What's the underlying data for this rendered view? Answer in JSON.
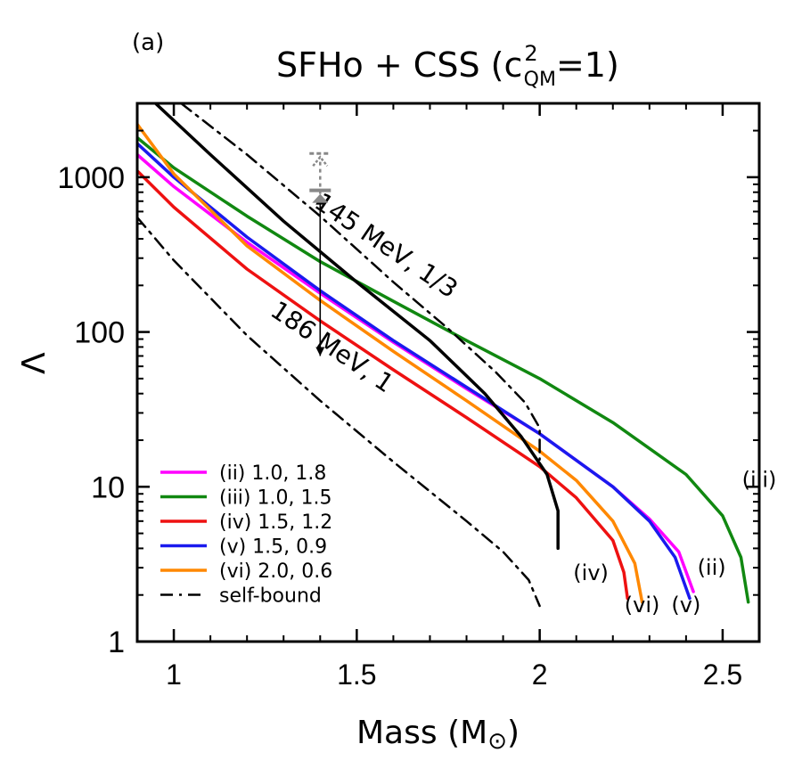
{
  "panel_label": "(a)",
  "title_main": "SFHo + CSS (c",
  "title_sup": "2",
  "title_sub": "QM",
  "title_end": "=1)",
  "xlabel_main": "Mass (M",
  "xlabel_sun": "⊙",
  "xlabel_end": ")",
  "ylabel": "Λ",
  "annotations": {
    "upper_selfbound": "145 MeV, 1/3",
    "lower_selfbound": "186 MeV, 1"
  },
  "colors": {
    "ii": "#ff00ff",
    "iii": "#118811",
    "iv": "#ee1111",
    "v": "#1a1aee",
    "vi": "#ff8800",
    "sfho": "#000000",
    "selfbound": "#000000",
    "gray": "#888888"
  },
  "chart_data": {
    "type": "line",
    "xlim": [
      0.9,
      2.6
    ],
    "ylim": [
      1,
      3000
    ],
    "yscale": "log",
    "xticks": [
      1,
      1.5,
      2,
      2.5
    ],
    "xtick_labels": [
      "1",
      "1.5",
      "2",
      "2.5"
    ],
    "yticks": [
      1,
      10,
      100,
      1000
    ],
    "ytick_labels": [
      "1",
      "10",
      "100",
      "1000"
    ],
    "legend_position": "lower-left",
    "series": [
      {
        "key": "ii",
        "name": "(ii) 1.0, 1.8",
        "label": "(ii)",
        "style": "solid",
        "points": [
          [
            0.9,
            1400
          ],
          [
            1.0,
            870
          ],
          [
            1.2,
            380
          ],
          [
            1.4,
            178
          ],
          [
            1.6,
            86
          ],
          [
            1.8,
            43
          ],
          [
            2.0,
            22
          ],
          [
            2.2,
            10
          ],
          [
            2.3,
            6.2
          ],
          [
            2.38,
            3.8
          ],
          [
            2.42,
            2.1
          ]
        ]
      },
      {
        "key": "iii",
        "name": "(iii) 1.0, 1.5",
        "label": "(iii)",
        "style": "solid",
        "points": [
          [
            0.9,
            1800
          ],
          [
            1.0,
            1150
          ],
          [
            1.2,
            560
          ],
          [
            1.4,
            285
          ],
          [
            1.6,
            158
          ],
          [
            1.8,
            88
          ],
          [
            2.0,
            50
          ],
          [
            2.2,
            26
          ],
          [
            2.4,
            12
          ],
          [
            2.5,
            6.5
          ],
          [
            2.55,
            3.5
          ],
          [
            2.57,
            1.8
          ]
        ]
      },
      {
        "key": "iv",
        "name": "(iv) 1.5, 1.2",
        "label": "(iv)",
        "style": "solid",
        "points": [
          [
            0.9,
            1100
          ],
          [
            1.0,
            640
          ],
          [
            1.2,
            255
          ],
          [
            1.4,
            118
          ],
          [
            1.6,
            57
          ],
          [
            1.8,
            28
          ],
          [
            2.0,
            13.5
          ],
          [
            2.1,
            8.5
          ],
          [
            2.2,
            4.5
          ],
          [
            2.23,
            2.8
          ],
          [
            2.24,
            1.9
          ]
        ]
      },
      {
        "key": "v",
        "name": "(v) 1.5, 0.9",
        "label": "(v)",
        "style": "solid",
        "points": [
          [
            0.9,
            1650
          ],
          [
            1.0,
            1000
          ],
          [
            1.2,
            410
          ],
          [
            1.4,
            185
          ],
          [
            1.6,
            88
          ],
          [
            1.8,
            44
          ],
          [
            2.0,
            22
          ],
          [
            2.2,
            10
          ],
          [
            2.3,
            6
          ],
          [
            2.37,
            3.5
          ],
          [
            2.41,
            1.9
          ]
        ]
      },
      {
        "key": "vi",
        "name": "(vi) 2.0, 0.6",
        "label": "(vi)",
        "style": "solid",
        "points": [
          [
            0.9,
            2200
          ],
          [
            1.0,
            1050
          ],
          [
            1.2,
            360
          ],
          [
            1.4,
            160
          ],
          [
            1.6,
            75
          ],
          [
            1.8,
            36
          ],
          [
            2.0,
            17
          ],
          [
            2.1,
            11
          ],
          [
            2.2,
            6
          ],
          [
            2.26,
            3.2
          ],
          [
            2.28,
            1.8
          ]
        ]
      },
      {
        "key": "sfho",
        "name": "",
        "label": "",
        "style": "solid",
        "points": [
          [
            0.95,
            3000
          ],
          [
            1.1,
            1400
          ],
          [
            1.3,
            520
          ],
          [
            1.5,
            210
          ],
          [
            1.7,
            88
          ],
          [
            1.85,
            40
          ],
          [
            1.95,
            21
          ],
          [
            2.02,
            12
          ],
          [
            2.05,
            7
          ],
          [
            2.05,
            4
          ]
        ]
      },
      {
        "key": "selfbound",
        "name": "self-bound",
        "label": "",
        "style": "dashdot",
        "points": [
          [
            0.9,
            550
          ],
          [
            1.0,
            290
          ],
          [
            1.2,
            95
          ],
          [
            1.4,
            36
          ],
          [
            1.6,
            14.5
          ],
          [
            1.8,
            6
          ],
          [
            1.9,
            3.8
          ],
          [
            1.97,
            2.5
          ],
          [
            2.0,
            1.7
          ]
        ]
      },
      {
        "key": "selfbound2",
        "name": "",
        "label": "",
        "style": "dashdot",
        "points": [
          [
            1.02,
            3000
          ],
          [
            1.2,
            1400
          ],
          [
            1.4,
            560
          ],
          [
            1.6,
            210
          ],
          [
            1.75,
            105
          ],
          [
            1.88,
            55
          ],
          [
            1.96,
            35
          ],
          [
            2.0,
            24
          ],
          [
            2.0,
            15
          ]
        ]
      }
    ],
    "vertical_arrow": {
      "x": 1.4,
      "y_low": 70,
      "y_high": 760
    },
    "gray_markers": {
      "x": 1.4,
      "solid_y": 780,
      "dashed_y": 1350
    }
  }
}
